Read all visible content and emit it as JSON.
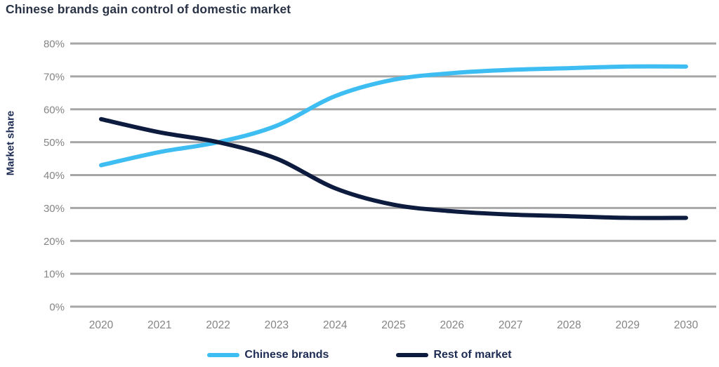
{
  "title": "Chinese brands gain control of domestic market",
  "colors": {
    "title_text": "#2a3346",
    "axis_title_text": "#1d2b53",
    "tick_text": "#848484",
    "gridline": "#a6a6a6",
    "chinese_brands": "#3dbdf1",
    "rest_of_market": "#0d1b3e",
    "background": "#ffffff"
  },
  "chart_data": {
    "type": "line",
    "title": "Chinese brands gain control of domestic market",
    "xlabel": "",
    "ylabel": "Market share",
    "categories": [
      2020,
      2021,
      2022,
      2023,
      2024,
      2025,
      2026,
      2027,
      2028,
      2029,
      2030
    ],
    "x_tick_labels": [
      "2020",
      "2021",
      "2022",
      "2023",
      "2024",
      "2025",
      "2026",
      "2027",
      "2028",
      "2029",
      "2030"
    ],
    "y_ticks": [
      0,
      10,
      20,
      30,
      40,
      50,
      60,
      70,
      80
    ],
    "y_tick_labels": [
      "0%",
      "10%",
      "20%",
      "30%",
      "40%",
      "50%",
      "60%",
      "70%",
      "80%"
    ],
    "ylim": [
      0,
      80
    ],
    "grid": "horizontal",
    "legend_position": "bottom",
    "series": [
      {
        "name": "Chinese brands",
        "slug": "chinese-brands",
        "color_key": "chinese_brands",
        "values": [
          43,
          47,
          50,
          55,
          64,
          69,
          71,
          72,
          72.5,
          73,
          73
        ]
      },
      {
        "name": "Rest of market",
        "slug": "rest-of-market",
        "color_key": "rest_of_market",
        "values": [
          57,
          53,
          50,
          45,
          36,
          31,
          29,
          28,
          27.5,
          27,
          27
        ]
      }
    ]
  }
}
